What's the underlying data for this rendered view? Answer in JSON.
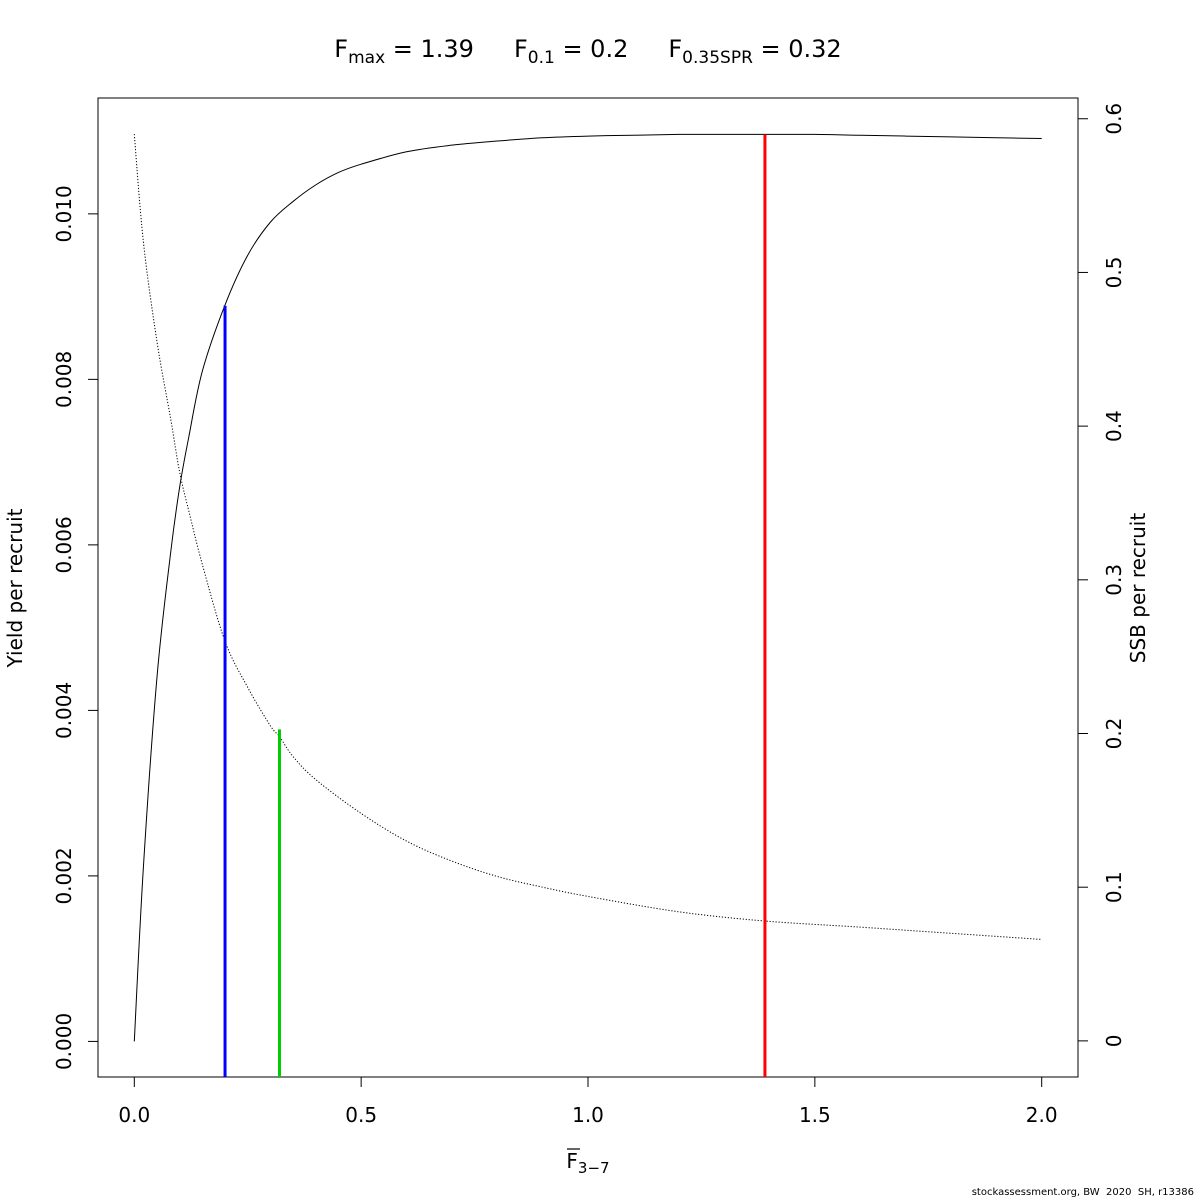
{
  "chart_data": {
    "type": "line",
    "title_parts": [
      {
        "base": "F",
        "sub": "max",
        "eq": " = 1.39"
      },
      {
        "base": "F",
        "sub": "0.1",
        "eq": " = 0.2"
      },
      {
        "base": "F",
        "sub": "0.35SPR",
        "eq": " = 0.32"
      }
    ],
    "xlabel": {
      "base": "F",
      "sub": "3−7",
      "overline": true
    },
    "ylabel_left": "Yield per recruit",
    "ylabel_right": "SSB per recruit",
    "xlim": [
      -0.08,
      2.08
    ],
    "ylim_left": [
      -0.00043,
      0.0114
    ],
    "ylim_right": [
      -0.0235,
      0.6135
    ],
    "x_ticks": [
      0,
      0.5,
      1,
      1.5,
      2
    ],
    "x_tick_labels": [
      "0.0",
      "0.5",
      "1.0",
      "1.5",
      "2.0"
    ],
    "y_left_ticks": [
      0,
      0.002,
      0.004,
      0.006,
      0.008,
      0.01
    ],
    "y_left_tick_labels": [
      "0.000",
      "0.002",
      "0.004",
      "0.006",
      "0.008",
      "0.010"
    ],
    "y_right_ticks": [
      0,
      0.1,
      0.2,
      0.3,
      0.4,
      0.5,
      0.6
    ],
    "y_right_tick_labels": [
      "0",
      "0.1",
      "0.2",
      "0.3",
      "0.4",
      "0.5",
      "0.6"
    ],
    "series": [
      {
        "axis": "left",
        "style": "solid",
        "color": "#000000",
        "x": [
          0,
          0.02,
          0.05,
          0.08,
          0.1,
          0.12,
          0.15,
          0.2,
          0.25,
          0.3,
          0.35,
          0.4,
          0.45,
          0.5,
          0.6,
          0.7,
          0.8,
          0.9,
          1.0,
          1.1,
          1.2,
          1.3,
          1.39,
          1.5,
          1.6,
          1.7,
          1.8,
          1.9,
          2.0
        ],
        "values": [
          0,
          0.0021,
          0.0044,
          0.0059,
          0.0067,
          0.0073,
          0.0081,
          0.0089,
          0.0095,
          0.0099,
          0.01015,
          0.01035,
          0.0105,
          0.0106,
          0.01075,
          0.01083,
          0.01088,
          0.01092,
          0.01094,
          0.01095,
          0.01096,
          0.01096,
          0.01096,
          0.01096,
          0.01095,
          0.01094,
          0.01093,
          0.01092,
          0.01091
        ]
      },
      {
        "axis": "right",
        "style": "dotted",
        "color": "#000000",
        "x": [
          0,
          0.02,
          0.05,
          0.08,
          0.1,
          0.12,
          0.15,
          0.2,
          0.25,
          0.3,
          0.32,
          0.35,
          0.4,
          0.5,
          0.6,
          0.7,
          0.8,
          0.9,
          1.0,
          1.2,
          1.39,
          1.6,
          1.8,
          2.0
        ],
        "values": [
          0.59,
          0.52,
          0.455,
          0.405,
          0.37,
          0.345,
          0.31,
          0.26,
          0.23,
          0.205,
          0.198,
          0.185,
          0.17,
          0.148,
          0.13,
          0.117,
          0.107,
          0.1,
          0.094,
          0.084,
          0.078,
          0.074,
          0.07,
          0.066
        ]
      }
    ],
    "reference_lines": [
      {
        "x": 0.2,
        "y_top": 0.00889,
        "color": "#0000ff"
      },
      {
        "x": 0.32,
        "y_top": 0.00377,
        "color": "#00cc00"
      },
      {
        "x": 1.39,
        "y_top": 0.01096,
        "color": "#ff0000"
      }
    ]
  },
  "footer": "stockassessment.org, BW  2020  SH, r13386"
}
